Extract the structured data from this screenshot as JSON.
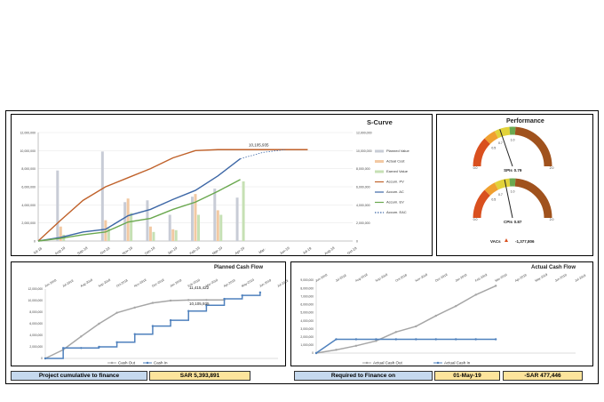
{
  "colors": {
    "pv": "#c0622b",
    "ac": "#3d67a6",
    "ev": "#6aa84f",
    "bar_planned": "#c8ccd6",
    "bar_actual": "#f2c9a3",
    "bar_earned": "#c6e0b4",
    "cash_out": "#a6a6a6",
    "cash_in": "#4f81bd",
    "box_blue": "#c5d9ee",
    "box_yellow": "#fde49c",
    "gauge_red": "#d9501f",
    "gauge_orange": "#f0a030",
    "gauge_yellow": "#e2d23a",
    "gauge_green": "#6aa84f",
    "gauge_brown": "#a0521d"
  },
  "scurve": {
    "title": "S-Curve",
    "annotation": "10,105,935",
    "ylim": [
      0,
      12000000
    ],
    "y_ticks": [
      "0",
      "2,000,000",
      "4,000,000",
      "6,000,000",
      "8,000,000",
      "10,000,000",
      "12,000,000"
    ],
    "y2_ticks": [
      "0",
      "2,000,000",
      "4,000,000",
      "6,000,000",
      "8,000,000",
      "10,000,000",
      "12,000,000"
    ],
    "x_labels": [
      "Jul-18",
      "Aug-18",
      "Sep-18",
      "Oct-18",
      "Nov-18",
      "Dec-18",
      "Jan-19",
      "Feb-19",
      "Mar-19",
      "Apr-19",
      "Mar-",
      "Jun-19",
      "Jul-19",
      "Aug-19",
      "Oct-19"
    ],
    "legend": [
      "Planned Value",
      "Actual Cost",
      "Earned Value",
      "Accum. PV",
      "Accum. AC",
      "Accum. EV",
      "Accum. EAC"
    ]
  },
  "chart_data": [
    {
      "type": "bar+line",
      "title": "S-Curve",
      "categories": [
        "Jul-18",
        "Aug-18",
        "Sep-18",
        "Oct-18",
        "Nov-18",
        "Dec-18",
        "Jan-19",
        "Feb-19",
        "Mar-19",
        "Apr-19",
        "Mar-",
        "Jun-19",
        "Jul-19",
        "Aug-19",
        "Oct-19"
      ],
      "ylim": [
        0,
        12000000
      ],
      "series": [
        {
          "name": "Planned Value",
          "kind": "bar",
          "values": [
            0,
            7800000,
            0,
            9900000,
            4300000,
            4500000,
            2900000,
            4900000,
            5800000,
            4800000,
            0,
            0,
            0,
            0,
            0
          ]
        },
        {
          "name": "Actual Cost",
          "kind": "bar",
          "values": [
            0,
            1600000,
            0,
            2300000,
            4700000,
            1600000,
            1300000,
            5200000,
            3400000,
            0,
            0,
            0,
            0,
            0,
            0
          ]
        },
        {
          "name": "Earned Value",
          "kind": "bar",
          "values": [
            0,
            700000,
            0,
            1400000,
            3100000,
            1000000,
            1200000,
            2900000,
            2900000,
            6600000,
            0,
            0,
            0,
            0,
            0
          ]
        },
        {
          "name": "Accum. PV",
          "kind": "line",
          "values": [
            0,
            2300000,
            4500000,
            6000000,
            7000000,
            8000000,
            9200000,
            10000000,
            10105935,
            10105935,
            10105935,
            10105935,
            10105935,
            null,
            null
          ]
        },
        {
          "name": "Accum. AC",
          "kind": "line",
          "values": [
            0,
            400000,
            1000000,
            1300000,
            2800000,
            3500000,
            4600000,
            5600000,
            7200000,
            9100000,
            null,
            null,
            null,
            null,
            null
          ]
        },
        {
          "name": "Accum. EV",
          "kind": "line",
          "values": [
            0,
            300000,
            700000,
            1000000,
            2100000,
            2500000,
            3500000,
            4300000,
            5500000,
            6800000,
            null,
            null,
            null,
            null,
            null
          ]
        },
        {
          "name": "Accum. EAC",
          "kind": "dashed-line",
          "values": [
            null,
            null,
            null,
            null,
            null,
            null,
            null,
            null,
            null,
            9100000,
            9800000,
            10105935,
            null,
            null,
            null
          ]
        }
      ]
    },
    {
      "type": "line",
      "title": "Planned Cash Flow",
      "categories": [
        "Jun-2018",
        "Jul-2018",
        "Aug-2018",
        "Sep-2018",
        "Oct-2018",
        "Nov-2018",
        "Dec-2018",
        "Jan-2019",
        "Feb-2019",
        "Mar-2019",
        "Apr-2019",
        "May-2019",
        "Jun-2019",
        "Jul-2019"
      ],
      "ylim": [
        0,
        12000000
      ],
      "series": [
        {
          "name": "Cash Out",
          "values": [
            0,
            1500000,
            3800000,
            6000000,
            7900000,
            8800000,
            9600000,
            10000000,
            10100000,
            10105935,
            10105935,
            null,
            null,
            null
          ]
        },
        {
          "name": "Cash In",
          "values": [
            0,
            1800000,
            1800000,
            2000000,
            2800000,
            4200000,
            5600000,
            6600000,
            8200000,
            9200000,
            10300000,
            10900000,
            11415422,
            null
          ]
        }
      ]
    },
    {
      "type": "line",
      "title": "Actual Cash Flow",
      "categories": [
        "Jun-2018",
        "Jul-2018",
        "Aug-2018",
        "Sep-2018",
        "Oct-2018",
        "Nov-2018",
        "Dec-2018",
        "Jan-2019",
        "Feb-2019",
        "Mar-2019",
        "Apr-2019",
        "May-2019",
        "Jun-2019",
        "Jul-2019"
      ],
      "ylim": [
        0,
        9000000
      ],
      "series": [
        {
          "name": "Actual Cash Out",
          "values": [
            0,
            400000,
            900000,
            1500000,
            2600000,
            3300000,
            4600000,
            5800000,
            7200000,
            8300000,
            null,
            null,
            null,
            null
          ]
        },
        {
          "name": "Actual Cash In",
          "values": [
            0,
            1700000,
            1700000,
            1700000,
            1700000,
            1700000,
            1700000,
            1700000,
            1700000,
            1700000,
            null,
            null,
            null,
            null
          ]
        }
      ]
    }
  ],
  "performance": {
    "title": "Performance",
    "spi_label": "SPIs",
    "spi_value": "0.79",
    "cpi_label": "CPIs",
    "cpi_value": "0.87",
    "spi": 0.79,
    "cpi": 0.87,
    "gauge1_ticks": [
      "0.5",
      "0.7",
      "1.0"
    ],
    "gauge1_ends": [
      "0.0",
      "2.0"
    ],
    "gauge2_ticks": [
      "0.5",
      "0.7",
      "1.0"
    ],
    "gauge2_ends": [
      "0.0",
      "2.0"
    ],
    "vac_label": "VACs",
    "vac_value": "-1,377,806"
  },
  "planned_cf": {
    "title": "Planned Cash Flow",
    "y_ticks": [
      "0",
      "2,000,000",
      "4,000,000",
      "6,000,000",
      "8,000,000",
      "10,000,000",
      "12,000,000"
    ],
    "x_labels": [
      "Jun-2018",
      "Jul-2018",
      "Aug-2018",
      "Sep-2018",
      "Oct-2018",
      "Nov-2018",
      "Dec-2018",
      "Jan-2019",
      "Feb-2019",
      "Mar-2019",
      "Apr-2019",
      "May-2019",
      "Jun-2019",
      "Jul-2019"
    ],
    "label_top": "11,415,422",
    "label_bottom": "10,105,935",
    "legend": [
      "Cash Out",
      "Cash In"
    ]
  },
  "actual_cf": {
    "title": "Actual Cash Flow",
    "y_ticks": [
      "0",
      "1,000,000",
      "2,000,000",
      "3,000,000",
      "4,000,000",
      "5,000,000",
      "6,000,000",
      "7,000,000",
      "8,000,000",
      "9,000,000"
    ],
    "x_labels": [
      "Jun-2018",
      "Jul-2018",
      "Aug-2018",
      "Sep-2018",
      "Oct-2018",
      "Nov-2018",
      "Dec-2018",
      "Jan-2019",
      "Feb-2019",
      "Mar-2019",
      "Apr-2019",
      "May-2019",
      "Jun-2019",
      "Jul-2019"
    ],
    "legend": [
      "Actual Cash Out",
      "Actual Cash In"
    ]
  },
  "footer": {
    "label1": "Project cumulative to finance",
    "value1": "SAR 5,393,891",
    "label2": "Required to Finance on",
    "date": "01-May-19",
    "value2": "-SAR 477,446"
  }
}
